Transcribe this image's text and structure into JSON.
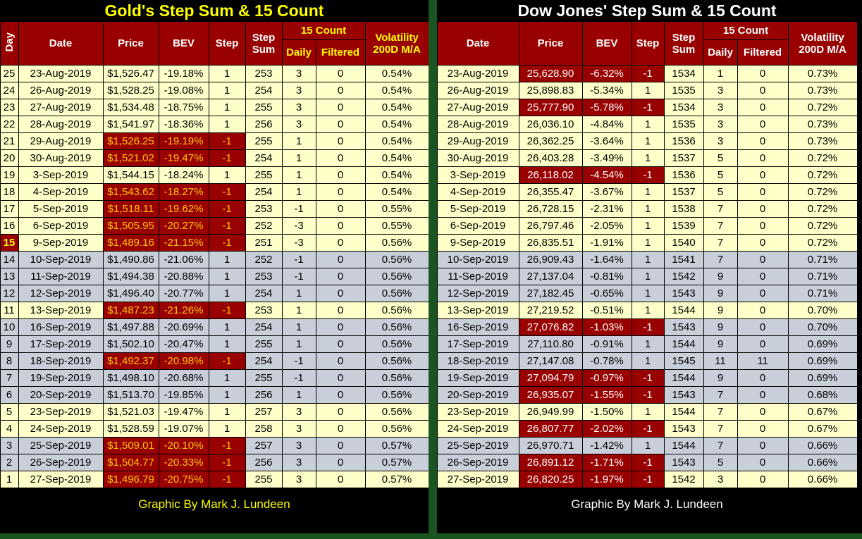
{
  "colors": {
    "header_bg": "#990000",
    "neg_bg": "#990000",
    "cream": "#FFFFC9",
    "band": "#C8CFD9",
    "gold_accent": "#FFFF00",
    "gold_neg_text": "#FFC800",
    "dow_neg_text": "#FFFFFF",
    "divider": "#1A5420"
  },
  "headers": {
    "day": "Day",
    "date": "Date",
    "price": "Price",
    "bev": "BEV",
    "step": "Step",
    "step_sum_top": "Step",
    "step_sum_bottom": "Sum",
    "count15": "15 Count",
    "daily": "Daily",
    "filtered": "Filtered",
    "volatility_top": "Volatility",
    "volatility_bottom": "200D M/A"
  },
  "chart_data": [
    {
      "type": "table",
      "title": "Gold's Step Sum & 15 Count",
      "footer": "Graphic By Mark J. Lundeen",
      "columns": [
        "Day",
        "Date",
        "Price",
        "BEV",
        "Step",
        "Step Sum",
        "15 Count Daily",
        "15 Count Filtered",
        "Volatility 200D M/A"
      ],
      "rows": [
        {
          "day": "25",
          "date": "23-Aug-2019",
          "price": "$1,526.47",
          "bev": "-19.18%",
          "step": "1",
          "sum": "253",
          "daily": "3",
          "filtered": "0",
          "vol": "0.54%",
          "neg": false,
          "band": false
        },
        {
          "day": "24",
          "date": "26-Aug-2019",
          "price": "$1,528.25",
          "bev": "-19.08%",
          "step": "1",
          "sum": "254",
          "daily": "3",
          "filtered": "0",
          "vol": "0.54%",
          "neg": false,
          "band": false
        },
        {
          "day": "23",
          "date": "27-Aug-2019",
          "price": "$1,534.48",
          "bev": "-18.75%",
          "step": "1",
          "sum": "255",
          "daily": "3",
          "filtered": "0",
          "vol": "0.54%",
          "neg": false,
          "band": false
        },
        {
          "day": "22",
          "date": "28-Aug-2019",
          "price": "$1,541.97",
          "bev": "-18.36%",
          "step": "1",
          "sum": "256",
          "daily": "3",
          "filtered": "0",
          "vol": "0.54%",
          "neg": false,
          "band": false
        },
        {
          "day": "21",
          "date": "29-Aug-2019",
          "price": "$1,526.25",
          "bev": "-19.19%",
          "step": "-1",
          "sum": "255",
          "daily": "1",
          "filtered": "0",
          "vol": "0.54%",
          "neg": true,
          "band": false
        },
        {
          "day": "20",
          "date": "30-Aug-2019",
          "price": "$1,521.02",
          "bev": "-19.47%",
          "step": "-1",
          "sum": "254",
          "daily": "1",
          "filtered": "0",
          "vol": "0.54%",
          "neg": true,
          "band": false
        },
        {
          "day": "19",
          "date": "3-Sep-2019",
          "price": "$1,544.15",
          "bev": "-18.24%",
          "step": "1",
          "sum": "255",
          "daily": "1",
          "filtered": "0",
          "vol": "0.54%",
          "neg": false,
          "band": false
        },
        {
          "day": "18",
          "date": "4-Sep-2019",
          "price": "$1,543.62",
          "bev": "-18.27%",
          "step": "-1",
          "sum": "254",
          "daily": "1",
          "filtered": "0",
          "vol": "0.54%",
          "neg": true,
          "band": false
        },
        {
          "day": "17",
          "date": "5-Sep-2019",
          "price": "$1,518.11",
          "bev": "-19.62%",
          "step": "-1",
          "sum": "253",
          "daily": "-1",
          "filtered": "0",
          "vol": "0.55%",
          "neg": true,
          "band": false
        },
        {
          "day": "16",
          "date": "6-Sep-2019",
          "price": "$1,505.95",
          "bev": "-20.27%",
          "step": "-1",
          "sum": "252",
          "daily": "-3",
          "filtered": "0",
          "vol": "0.55%",
          "neg": true,
          "band": false
        },
        {
          "day": "15",
          "date": "9-Sep-2019",
          "price": "$1,489.16",
          "bev": "-21.15%",
          "step": "-1",
          "sum": "251",
          "daily": "-3",
          "filtered": "0",
          "vol": "0.56%",
          "neg": true,
          "band": false,
          "day_hl": true
        },
        {
          "day": "14",
          "date": "10-Sep-2019",
          "price": "$1,490.86",
          "bev": "-21.06%",
          "step": "1",
          "sum": "252",
          "daily": "-1",
          "filtered": "0",
          "vol": "0.56%",
          "neg": false,
          "band": true
        },
        {
          "day": "13",
          "date": "11-Sep-2019",
          "price": "$1,494.38",
          "bev": "-20.88%",
          "step": "1",
          "sum": "253",
          "daily": "-1",
          "filtered": "0",
          "vol": "0.56%",
          "neg": false,
          "band": true
        },
        {
          "day": "12",
          "date": "12-Sep-2019",
          "price": "$1,496.40",
          "bev": "-20.77%",
          "step": "1",
          "sum": "254",
          "daily": "1",
          "filtered": "0",
          "vol": "0.56%",
          "neg": false,
          "band": true
        },
        {
          "day": "11",
          "date": "13-Sep-2019",
          "price": "$1,487.23",
          "bev": "-21.26%",
          "step": "-1",
          "sum": "253",
          "daily": "1",
          "filtered": "0",
          "vol": "0.56%",
          "neg": true,
          "band": false
        },
        {
          "day": "10",
          "date": "16-Sep-2019",
          "price": "$1,497.88",
          "bev": "-20.69%",
          "step": "1",
          "sum": "254",
          "daily": "1",
          "filtered": "0",
          "vol": "0.56%",
          "neg": false,
          "band": true
        },
        {
          "day": "9",
          "date": "17-Sep-2019",
          "price": "$1,502.10",
          "bev": "-20.47%",
          "step": "1",
          "sum": "255",
          "daily": "1",
          "filtered": "0",
          "vol": "0.56%",
          "neg": false,
          "band": true
        },
        {
          "day": "8",
          "date": "18-Sep-2019",
          "price": "$1,492.37",
          "bev": "-20.98%",
          "step": "-1",
          "sum": "254",
          "daily": "-1",
          "filtered": "0",
          "vol": "0.56%",
          "neg": true,
          "band": true
        },
        {
          "day": "7",
          "date": "19-Sep-2019",
          "price": "$1,498.10",
          "bev": "-20.68%",
          "step": "1",
          "sum": "255",
          "daily": "-1",
          "filtered": "0",
          "vol": "0.56%",
          "neg": false,
          "band": true
        },
        {
          "day": "6",
          "date": "20-Sep-2019",
          "price": "$1,513.70",
          "bev": "-19.85%",
          "step": "1",
          "sum": "256",
          "daily": "1",
          "filtered": "0",
          "vol": "0.56%",
          "neg": false,
          "band": true
        },
        {
          "day": "5",
          "date": "23-Sep-2019",
          "price": "$1,521.03",
          "bev": "-19.47%",
          "step": "1",
          "sum": "257",
          "daily": "3",
          "filtered": "0",
          "vol": "0.56%",
          "neg": false,
          "band": false
        },
        {
          "day": "4",
          "date": "24-Sep-2019",
          "price": "$1,528.59",
          "bev": "-19.07%",
          "step": "1",
          "sum": "258",
          "daily": "3",
          "filtered": "0",
          "vol": "0.56%",
          "neg": false,
          "band": false
        },
        {
          "day": "3",
          "date": "25-Sep-2019",
          "price": "$1,509.01",
          "bev": "-20.10%",
          "step": "-1",
          "sum": "257",
          "daily": "3",
          "filtered": "0",
          "vol": "0.57%",
          "neg": true,
          "band": true
        },
        {
          "day": "2",
          "date": "26-Sep-2019",
          "price": "$1,504.77",
          "bev": "-20.33%",
          "step": "-1",
          "sum": "256",
          "daily": "3",
          "filtered": "0",
          "vol": "0.57%",
          "neg": true,
          "band": true
        },
        {
          "day": "1",
          "date": "27-Sep-2019",
          "price": "$1,496.79",
          "bev": "-20.75%",
          "step": "-1",
          "sum": "255",
          "daily": "3",
          "filtered": "0",
          "vol": "0.57%",
          "neg": true,
          "band": false
        }
      ]
    },
    {
      "type": "table",
      "title": "Dow Jones' Step Sum & 15 Count",
      "footer": "Graphic By Mark J. Lundeen",
      "columns": [
        "Date",
        "Price",
        "BEV",
        "Step",
        "Step Sum",
        "15 Count Daily",
        "15 Count Filtered",
        "Volatility 200D M/A"
      ],
      "rows": [
        {
          "date": "23-Aug-2019",
          "price": "25,628.90",
          "bev": "-6.32%",
          "step": "-1",
          "sum": "1534",
          "daily": "1",
          "filtered": "0",
          "vol": "0.73%",
          "neg": true,
          "band": false
        },
        {
          "date": "26-Aug-2019",
          "price": "25,898.83",
          "bev": "-5.34%",
          "step": "1",
          "sum": "1535",
          "daily": "3",
          "filtered": "0",
          "vol": "0.73%",
          "neg": false,
          "band": false
        },
        {
          "date": "27-Aug-2019",
          "price": "25,777.90",
          "bev": "-5.78%",
          "step": "-1",
          "sum": "1534",
          "daily": "3",
          "filtered": "0",
          "vol": "0.72%",
          "neg": true,
          "band": false
        },
        {
          "date": "28-Aug-2019",
          "price": "26,036.10",
          "bev": "-4.84%",
          "step": "1",
          "sum": "1535",
          "daily": "3",
          "filtered": "0",
          "vol": "0.73%",
          "neg": false,
          "band": false
        },
        {
          "date": "29-Aug-2019",
          "price": "26,362.25",
          "bev": "-3.64%",
          "step": "1",
          "sum": "1536",
          "daily": "3",
          "filtered": "0",
          "vol": "0.73%",
          "neg": false,
          "band": false
        },
        {
          "date": "30-Aug-2019",
          "price": "26,403.28",
          "bev": "-3.49%",
          "step": "1",
          "sum": "1537",
          "daily": "5",
          "filtered": "0",
          "vol": "0.72%",
          "neg": false,
          "band": false
        },
        {
          "date": "3-Sep-2019",
          "price": "26,118.02",
          "bev": "-4.54%",
          "step": "-1",
          "sum": "1536",
          "daily": "5",
          "filtered": "0",
          "vol": "0.72%",
          "neg": true,
          "band": false
        },
        {
          "date": "4-Sep-2019",
          "price": "26,355.47",
          "bev": "-3.67%",
          "step": "1",
          "sum": "1537",
          "daily": "5",
          "filtered": "0",
          "vol": "0.72%",
          "neg": false,
          "band": false
        },
        {
          "date": "5-Sep-2019",
          "price": "26,728.15",
          "bev": "-2.31%",
          "step": "1",
          "sum": "1538",
          "daily": "7",
          "filtered": "0",
          "vol": "0.72%",
          "neg": false,
          "band": false
        },
        {
          "date": "6-Sep-2019",
          "price": "26,797.46",
          "bev": "-2.05%",
          "step": "1",
          "sum": "1539",
          "daily": "7",
          "filtered": "0",
          "vol": "0.72%",
          "neg": false,
          "band": false
        },
        {
          "date": "9-Sep-2019",
          "price": "26,835.51",
          "bev": "-1.91%",
          "step": "1",
          "sum": "1540",
          "daily": "7",
          "filtered": "0",
          "vol": "0.72%",
          "neg": false,
          "band": false
        },
        {
          "date": "10-Sep-2019",
          "price": "26,909.43",
          "bev": "-1.64%",
          "step": "1",
          "sum": "1541",
          "daily": "7",
          "filtered": "0",
          "vol": "0.71%",
          "neg": false,
          "band": true
        },
        {
          "date": "11-Sep-2019",
          "price": "27,137.04",
          "bev": "-0.81%",
          "step": "1",
          "sum": "1542",
          "daily": "9",
          "filtered": "0",
          "vol": "0.71%",
          "neg": false,
          "band": true
        },
        {
          "date": "12-Sep-2019",
          "price": "27,182.45",
          "bev": "-0.65%",
          "step": "1",
          "sum": "1543",
          "daily": "9",
          "filtered": "0",
          "vol": "0.71%",
          "neg": false,
          "band": true
        },
        {
          "date": "13-Sep-2019",
          "price": "27,219.52",
          "bev": "-0.51%",
          "step": "1",
          "sum": "1544",
          "daily": "9",
          "filtered": "0",
          "vol": "0.70%",
          "neg": false,
          "band": false
        },
        {
          "date": "16-Sep-2019",
          "price": "27,076.82",
          "bev": "-1.03%",
          "step": "-1",
          "sum": "1543",
          "daily": "9",
          "filtered": "0",
          "vol": "0.70%",
          "neg": true,
          "band": true
        },
        {
          "date": "17-Sep-2019",
          "price": "27,110.80",
          "bev": "-0.91%",
          "step": "1",
          "sum": "1544",
          "daily": "9",
          "filtered": "0",
          "vol": "0.69%",
          "neg": false,
          "band": true
        },
        {
          "date": "18-Sep-2019",
          "price": "27,147.08",
          "bev": "-0.78%",
          "step": "1",
          "sum": "1545",
          "daily": "11",
          "filtered": "11",
          "vol": "0.69%",
          "neg": false,
          "band": true
        },
        {
          "date": "19-Sep-2019",
          "price": "27,094.79",
          "bev": "-0.97%",
          "step": "-1",
          "sum": "1544",
          "daily": "9",
          "filtered": "0",
          "vol": "0.69%",
          "neg": true,
          "band": true
        },
        {
          "date": "20-Sep-2019",
          "price": "26,935.07",
          "bev": "-1.55%",
          "step": "-1",
          "sum": "1543",
          "daily": "7",
          "filtered": "0",
          "vol": "0.68%",
          "neg": true,
          "band": true
        },
        {
          "date": "23-Sep-2019",
          "price": "26,949.99",
          "bev": "-1.50%",
          "step": "1",
          "sum": "1544",
          "daily": "7",
          "filtered": "0",
          "vol": "0.67%",
          "neg": false,
          "band": false
        },
        {
          "date": "24-Sep-2019",
          "price": "26,807.77",
          "bev": "-2.02%",
          "step": "-1",
          "sum": "1543",
          "daily": "7",
          "filtered": "0",
          "vol": "0.67%",
          "neg": true,
          "band": false
        },
        {
          "date": "25-Sep-2019",
          "price": "26,970.71",
          "bev": "-1.42%",
          "step": "1",
          "sum": "1544",
          "daily": "7",
          "filtered": "0",
          "vol": "0.66%",
          "neg": false,
          "band": true
        },
        {
          "date": "26-Sep-2019",
          "price": "26,891.12",
          "bev": "-1.71%",
          "step": "-1",
          "sum": "1543",
          "daily": "5",
          "filtered": "0",
          "vol": "0.66%",
          "neg": true,
          "band": true
        },
        {
          "date": "27-Sep-2019",
          "price": "26,820.25",
          "bev": "-1.97%",
          "step": "-1",
          "sum": "1542",
          "daily": "3",
          "filtered": "0",
          "vol": "0.66%",
          "neg": true,
          "band": false
        }
      ]
    }
  ]
}
